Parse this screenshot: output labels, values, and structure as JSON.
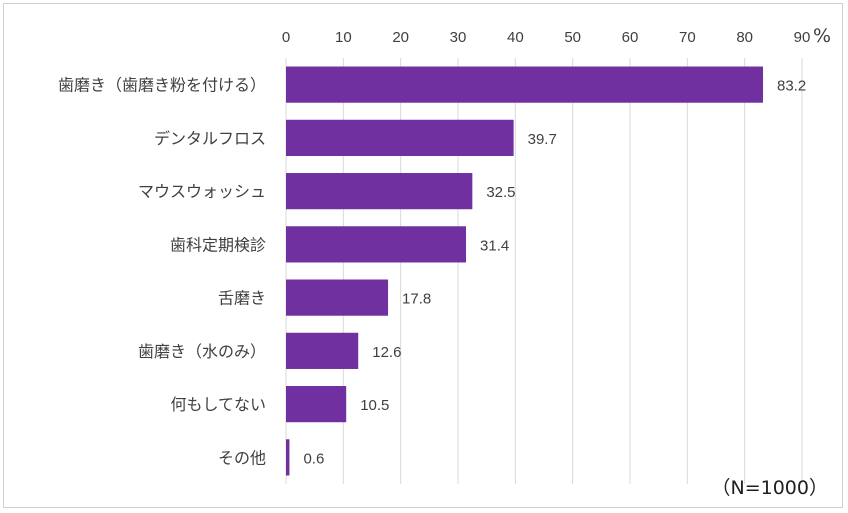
{
  "chart_data": {
    "type": "bar",
    "orientation": "horizontal",
    "categories": [
      "歯磨き（歯磨き粉を付ける）",
      "デンタルフロス",
      "マウスウォッシュ",
      "歯科定期検診",
      "舌磨き",
      "歯磨き（水のみ）",
      "何もしてない",
      "その他"
    ],
    "values": [
      83.2,
      39.7,
      32.5,
      31.4,
      17.8,
      12.6,
      10.5,
      0.6
    ],
    "value_labels": [
      "83.2",
      "39.7",
      "32.5",
      "31.4",
      "17.8",
      "12.6",
      "10.5",
      "0.6"
    ],
    "xlim": [
      0,
      90
    ],
    "xticks": [
      "0",
      "10",
      "20",
      "30",
      "40",
      "50",
      "60",
      "70",
      "80",
      "90"
    ],
    "x_unit": "%",
    "note": "（N=1000）",
    "grid": true,
    "bar_color": "#7030a0",
    "title": "",
    "xlabel": "",
    "ylabel": ""
  }
}
